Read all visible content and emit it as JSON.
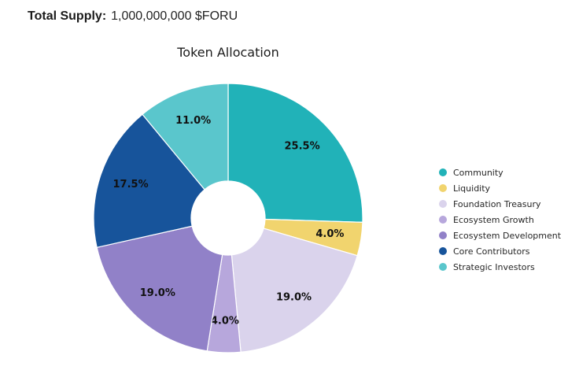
{
  "header": {
    "label": "Total Supply:",
    "value": "1,000,000,000 $FORU"
  },
  "chart_data": {
    "type": "pie",
    "title": "Token Allocation",
    "donut": true,
    "start_angle_deg": 0,
    "direction": "clockwise",
    "legend_position": "right",
    "total_percent": 100,
    "slices": [
      {
        "label": "Community",
        "value": 25.5,
        "display": "25.5%",
        "color": "#21b2b8"
      },
      {
        "label": "Liquidity",
        "value": 4.0,
        "display": "4.0%",
        "color": "#f1d46e"
      },
      {
        "label": "Foundation Treasury",
        "value": 19.0,
        "display": "19.0%",
        "color": "#dad3ec"
      },
      {
        "label": "Ecosystem Growth",
        "value": 4.0,
        "display": "4.0%",
        "color": "#b7a7dc"
      },
      {
        "label": "Ecosystem Development",
        "value": 19.0,
        "display": "19.0%",
        "color": "#9181c8"
      },
      {
        "label": "Core Contributors",
        "value": 17.5,
        "display": "17.5%",
        "color": "#17549b"
      },
      {
        "label": "Strategic Investors",
        "value": 11.0,
        "display": "11.0%",
        "color": "#5ac6cc"
      }
    ]
  }
}
